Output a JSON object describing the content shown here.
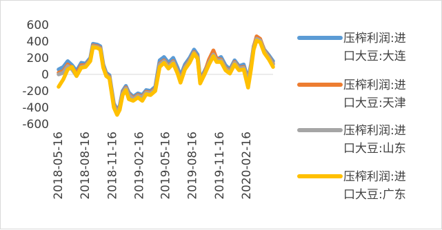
{
  "chart_data": {
    "type": "line",
    "title": "",
    "xlabel": "",
    "ylabel": "",
    "ylim": [
      -600,
      600
    ],
    "yticks": [
      600,
      400,
      200,
      0,
      -200,
      -400,
      -600
    ],
    "x_tick_labels": [
      "2018-05-16",
      "2018-08-16",
      "2018-11-16",
      "2019-02-16",
      "2019-05-16",
      "2019-08-16",
      "2019-11-16",
      "2020-02-16"
    ],
    "x_tick_dates": [
      "2018-05-16",
      "2018-08-16",
      "2018-11-16",
      "2019-02-16",
      "2019-05-16",
      "2019-08-16",
      "2019-11-16",
      "2020-02-16"
    ],
    "x_range": [
      "2018-05-16",
      "2020-05-15"
    ],
    "grid": false,
    "legend_position": "right",
    "series": [
      {
        "name_line1": "压榨利润:进",
        "name_line2": "口大豆:大连",
        "color": "#5B9BD5",
        "points": [
          [
            "2018-05-16",
            60
          ],
          [
            "2018-06-01",
            90
          ],
          [
            "2018-06-16",
            160
          ],
          [
            "2018-07-01",
            110
          ],
          [
            "2018-07-16",
            40
          ],
          [
            "2018-08-01",
            140
          ],
          [
            "2018-08-16",
            130
          ],
          [
            "2018-09-01",
            200
          ],
          [
            "2018-09-10",
            370
          ],
          [
            "2018-09-25",
            360
          ],
          [
            "2018-10-05",
            340
          ],
          [
            "2018-10-15",
            120
          ],
          [
            "2018-10-25",
            20
          ],
          [
            "2018-11-05",
            -10
          ],
          [
            "2018-11-20",
            -350
          ],
          [
            "2018-12-01",
            -430
          ],
          [
            "2018-12-10",
            -380
          ],
          [
            "2018-12-20",
            -200
          ],
          [
            "2018-12-31",
            -140
          ],
          [
            "2019-01-10",
            -220
          ],
          [
            "2019-01-25",
            -270
          ],
          [
            "2019-02-10",
            -230
          ],
          [
            "2019-02-25",
            -250
          ],
          [
            "2019-03-10",
            -190
          ],
          [
            "2019-03-25",
            -200
          ],
          [
            "2019-04-10",
            -150
          ],
          [
            "2019-04-25",
            170
          ],
          [
            "2019-05-10",
            210
          ],
          [
            "2019-05-25",
            140
          ],
          [
            "2019-06-10",
            200
          ],
          [
            "2019-06-25",
            80
          ],
          [
            "2019-07-05",
            -20
          ],
          [
            "2019-07-20",
            120
          ],
          [
            "2019-08-05",
            200
          ],
          [
            "2019-08-20",
            300
          ],
          [
            "2019-09-01",
            240
          ],
          [
            "2019-09-10",
            -60
          ],
          [
            "2019-09-25",
            40
          ],
          [
            "2019-10-10",
            150
          ],
          [
            "2019-10-25",
            250
          ],
          [
            "2019-11-05",
            180
          ],
          [
            "2019-11-20",
            210
          ],
          [
            "2019-12-05",
            110
          ],
          [
            "2019-12-20",
            60
          ],
          [
            "2020-01-05",
            170
          ],
          [
            "2020-01-20",
            100
          ],
          [
            "2020-02-05",
            120
          ],
          [
            "2020-02-20",
            -60
          ],
          [
            "2020-03-01",
            120
          ],
          [
            "2020-03-10",
            340
          ],
          [
            "2020-03-20",
            440
          ],
          [
            "2020-04-01",
            420
          ],
          [
            "2020-04-15",
            300
          ],
          [
            "2020-05-01",
            230
          ],
          [
            "2020-05-15",
            160
          ]
        ]
      },
      {
        "name_line1": "压榨利润:进",
        "name_line2": "口大豆:天津",
        "color": "#ED7D31",
        "points": [
          [
            "2018-05-16",
            20
          ],
          [
            "2018-06-01",
            40
          ],
          [
            "2018-06-16",
            120
          ],
          [
            "2018-07-01",
            80
          ],
          [
            "2018-07-16",
            10
          ],
          [
            "2018-08-01",
            110
          ],
          [
            "2018-08-16",
            110
          ],
          [
            "2018-09-01",
            180
          ],
          [
            "2018-09-10",
            350
          ],
          [
            "2018-09-25",
            340
          ],
          [
            "2018-10-05",
            320
          ],
          [
            "2018-10-15",
            100
          ],
          [
            "2018-10-25",
            0
          ],
          [
            "2018-11-05",
            -30
          ],
          [
            "2018-11-20",
            -370
          ],
          [
            "2018-12-01",
            -450
          ],
          [
            "2018-12-10",
            -400
          ],
          [
            "2018-12-20",
            -220
          ],
          [
            "2018-12-31",
            -160
          ],
          [
            "2019-01-10",
            -240
          ],
          [
            "2019-01-25",
            -290
          ],
          [
            "2019-02-10",
            -250
          ],
          [
            "2019-02-25",
            -270
          ],
          [
            "2019-03-10",
            -210
          ],
          [
            "2019-03-25",
            -220
          ],
          [
            "2019-04-10",
            -170
          ],
          [
            "2019-04-25",
            130
          ],
          [
            "2019-05-10",
            170
          ],
          [
            "2019-05-25",
            100
          ],
          [
            "2019-06-10",
            160
          ],
          [
            "2019-06-25",
            40
          ],
          [
            "2019-07-05",
            -60
          ],
          [
            "2019-07-20",
            90
          ],
          [
            "2019-08-05",
            170
          ],
          [
            "2019-08-20",
            270
          ],
          [
            "2019-09-01",
            210
          ],
          [
            "2019-09-10",
            -80
          ],
          [
            "2019-09-25",
            20
          ],
          [
            "2019-10-10",
            180
          ],
          [
            "2019-10-25",
            290
          ],
          [
            "2019-11-05",
            190
          ],
          [
            "2019-11-20",
            180
          ],
          [
            "2019-12-05",
            80
          ],
          [
            "2019-12-20",
            40
          ],
          [
            "2020-01-05",
            150
          ],
          [
            "2020-01-20",
            80
          ],
          [
            "2020-02-05",
            90
          ],
          [
            "2020-02-20",
            -80
          ],
          [
            "2020-03-01",
            100
          ],
          [
            "2020-03-10",
            330
          ],
          [
            "2020-03-20",
            460
          ],
          [
            "2020-04-01",
            430
          ],
          [
            "2020-04-15",
            290
          ],
          [
            "2020-05-01",
            210
          ],
          [
            "2020-05-15",
            130
          ]
        ]
      },
      {
        "name_line1": "压榨利润:进",
        "name_line2": "口大豆:山东",
        "color": "#A5A5A5",
        "points": [
          [
            "2018-05-16",
            0
          ],
          [
            "2018-06-01",
            20
          ],
          [
            "2018-06-16",
            100
          ],
          [
            "2018-07-01",
            60
          ],
          [
            "2018-07-16",
            -20
          ],
          [
            "2018-08-01",
            90
          ],
          [
            "2018-08-16",
            100
          ],
          [
            "2018-09-01",
            170
          ],
          [
            "2018-09-10",
            340
          ],
          [
            "2018-09-25",
            330
          ],
          [
            "2018-10-05",
            310
          ],
          [
            "2018-10-15",
            90
          ],
          [
            "2018-10-25",
            -10
          ],
          [
            "2018-11-05",
            -40
          ],
          [
            "2018-11-20",
            -380
          ],
          [
            "2018-12-01",
            -460
          ],
          [
            "2018-12-10",
            -410
          ],
          [
            "2018-12-20",
            -230
          ],
          [
            "2018-12-31",
            -170
          ],
          [
            "2019-01-10",
            -250
          ],
          [
            "2019-01-25",
            -300
          ],
          [
            "2019-02-10",
            -260
          ],
          [
            "2019-02-25",
            -280
          ],
          [
            "2019-03-10",
            -220
          ],
          [
            "2019-03-25",
            -230
          ],
          [
            "2019-04-10",
            -180
          ],
          [
            "2019-04-25",
            120
          ],
          [
            "2019-05-10",
            160
          ],
          [
            "2019-05-25",
            90
          ],
          [
            "2019-06-10",
            150
          ],
          [
            "2019-06-25",
            30
          ],
          [
            "2019-07-05",
            -70
          ],
          [
            "2019-07-20",
            80
          ],
          [
            "2019-08-05",
            160
          ],
          [
            "2019-08-20",
            260
          ],
          [
            "2019-09-01",
            200
          ],
          [
            "2019-09-10",
            -90
          ],
          [
            "2019-09-25",
            10
          ],
          [
            "2019-10-10",
            140
          ],
          [
            "2019-10-25",
            240
          ],
          [
            "2019-11-05",
            170
          ],
          [
            "2019-11-20",
            170
          ],
          [
            "2019-12-05",
            70
          ],
          [
            "2019-12-20",
            30
          ],
          [
            "2020-01-05",
            140
          ],
          [
            "2020-01-20",
            70
          ],
          [
            "2020-02-05",
            80
          ],
          [
            "2020-02-20",
            -90
          ],
          [
            "2020-03-01",
            90
          ],
          [
            "2020-03-10",
            320
          ],
          [
            "2020-03-20",
            430
          ],
          [
            "2020-04-01",
            410
          ],
          [
            "2020-04-15",
            280
          ],
          [
            "2020-05-01",
            200
          ],
          [
            "2020-05-15",
            120
          ]
        ]
      },
      {
        "name_line1": "压榨利润:进",
        "name_line2": "口大豆:广东",
        "color": "#FFC000",
        "points": [
          [
            "2018-05-16",
            -150
          ],
          [
            "2018-06-01",
            -60
          ],
          [
            "2018-06-16",
            60
          ],
          [
            "2018-07-01",
            90
          ],
          [
            "2018-07-16",
            -20
          ],
          [
            "2018-08-01",
            80
          ],
          [
            "2018-08-16",
            90
          ],
          [
            "2018-09-01",
            160
          ],
          [
            "2018-09-10",
            330
          ],
          [
            "2018-09-25",
            320
          ],
          [
            "2018-10-05",
            300
          ],
          [
            "2018-10-15",
            80
          ],
          [
            "2018-10-25",
            -20
          ],
          [
            "2018-11-05",
            -50
          ],
          [
            "2018-11-20",
            -400
          ],
          [
            "2018-12-01",
            -490
          ],
          [
            "2018-12-10",
            -430
          ],
          [
            "2018-12-20",
            -250
          ],
          [
            "2018-12-31",
            -190
          ],
          [
            "2019-01-10",
            -300
          ],
          [
            "2019-01-25",
            -320
          ],
          [
            "2019-02-10",
            -280
          ],
          [
            "2019-02-25",
            -320
          ],
          [
            "2019-03-10",
            -240
          ],
          [
            "2019-03-25",
            -250
          ],
          [
            "2019-04-10",
            -200
          ],
          [
            "2019-04-25",
            90
          ],
          [
            "2019-05-10",
            140
          ],
          [
            "2019-05-25",
            70
          ],
          [
            "2019-06-10",
            130
          ],
          [
            "2019-06-25",
            10
          ],
          [
            "2019-07-05",
            -100
          ],
          [
            "2019-07-20",
            60
          ],
          [
            "2019-08-05",
            140
          ],
          [
            "2019-08-20",
            250
          ],
          [
            "2019-09-01",
            190
          ],
          [
            "2019-09-10",
            -110
          ],
          [
            "2019-09-25",
            0
          ],
          [
            "2019-10-10",
            120
          ],
          [
            "2019-10-25",
            220
          ],
          [
            "2019-11-05",
            150
          ],
          [
            "2019-11-20",
            150
          ],
          [
            "2019-12-05",
            50
          ],
          [
            "2019-12-20",
            10
          ],
          [
            "2020-01-05",
            120
          ],
          [
            "2020-01-20",
            50
          ],
          [
            "2020-02-05",
            60
          ],
          [
            "2020-02-20",
            -160
          ],
          [
            "2020-03-01",
            60
          ],
          [
            "2020-03-10",
            300
          ],
          [
            "2020-03-20",
            410
          ],
          [
            "2020-04-01",
            390
          ],
          [
            "2020-04-15",
            260
          ],
          [
            "2020-05-01",
            180
          ],
          [
            "2020-05-15",
            90
          ]
        ]
      }
    ]
  }
}
